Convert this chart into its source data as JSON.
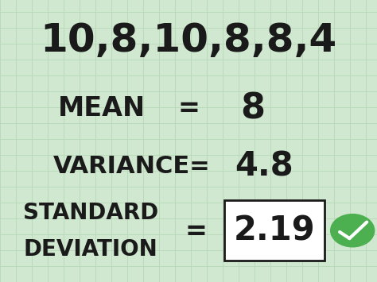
{
  "bg_color": "#cfe8cf",
  "grid_color": "#b8d8b8",
  "text_color": "#1a1a1a",
  "line1": "10,8,10,8,8,4",
  "line2_label": "MEAN",
  "line2_eq": "=",
  "line2_val": "8",
  "line3_label": "VARIANCE=",
  "line3_val": "4.8",
  "line4_label1": "STANDARD",
  "line4_label2": "DEVIATION",
  "line4_eq": "=",
  "line4_val": "2.19",
  "box_color": "#1a1a1a",
  "check_color": "#4caf50",
  "check_mark_color": "#ffffff",
  "font_size_line1": 36,
  "font_size_line2_label": 24,
  "font_size_line2_val": 32,
  "font_size_line3_label": 22,
  "font_size_line3_val": 30,
  "font_size_line4_label": 20,
  "font_size_line4_val": 30,
  "font_size_eq": 24,
  "fig_width": 4.74,
  "fig_height": 3.55,
  "dpi": 100
}
